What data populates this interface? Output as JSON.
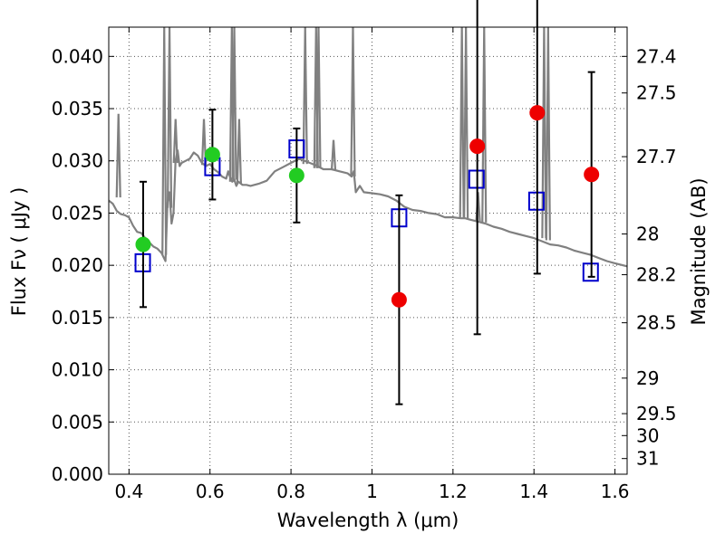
{
  "chart_data": {
    "type": "scatter",
    "title": "",
    "xlabel": "Wavelength  λ (μm)",
    "ylabel": "Flux  Fν  ( μJy )",
    "ylabel2": "Magnitude (AB)",
    "xlim": [
      0.35,
      1.63
    ],
    "ylim": [
      0.0,
      0.0428
    ],
    "grid": true,
    "grid_style": "dotted",
    "x_ticks": [
      0.4,
      0.6,
      0.8,
      1.0,
      1.2,
      1.4,
      1.6
    ],
    "x_tick_labels": [
      "0.4",
      "0.6",
      "0.8",
      "1",
      "1.2",
      "1.4",
      "1.6"
    ],
    "y_ticks": [
      0.0,
      0.005,
      0.01,
      0.015,
      0.02,
      0.025,
      0.03,
      0.035,
      0.04
    ],
    "y_tick_labels": [
      "0.000",
      "0.005",
      "0.010",
      "0.015",
      "0.020",
      "0.025",
      "0.030",
      "0.035",
      "0.040"
    ],
    "right_ticks": [
      {
        "label": "27.4",
        "flux": 0.04
      },
      {
        "label": "27.5",
        "flux": 0.0365
      },
      {
        "label": "27.7",
        "flux": 0.0304
      },
      {
        "label": "28",
        "flux": 0.023
      },
      {
        "label": "28.2",
        "flux": 0.0191
      },
      {
        "label": "28.5",
        "flux": 0.0145
      },
      {
        "label": "29",
        "flux": 0.0092
      },
      {
        "label": "29.5",
        "flux": 0.0058
      },
      {
        "label": "30",
        "flux": 0.0037
      },
      {
        "label": "31",
        "flux": 0.0015
      }
    ],
    "colors": {
      "spectrum": "#808080",
      "model": "#0000cc",
      "optical": "#22cc22",
      "nir": "#ee0000",
      "errorbar": "#000000",
      "grid": "#555555"
    },
    "series": [
      {
        "kind": "line",
        "x": [
          0.35,
          0.36,
          0.37,
          0.38,
          0.39,
          0.4,
          0.41,
          0.42,
          0.43,
          0.44,
          0.45,
          0.46,
          0.47,
          0.48,
          0.49,
          0.495,
          0.5,
          0.505,
          0.51,
          0.515,
          0.52,
          0.525,
          0.53,
          0.54,
          0.55,
          0.56,
          0.57,
          0.58,
          0.59,
          0.6,
          0.61,
          0.62,
          0.63,
          0.64,
          0.645,
          0.65,
          0.655,
          0.66,
          0.665,
          0.67,
          0.68,
          0.69,
          0.7,
          0.72,
          0.74,
          0.76,
          0.78,
          0.8,
          0.82,
          0.84,
          0.86,
          0.88,
          0.9,
          0.92,
          0.94,
          0.95,
          0.955,
          0.96,
          0.97,
          0.98,
          1.0,
          1.02,
          1.04,
          1.06,
          1.08,
          1.1,
          1.12,
          1.14,
          1.16,
          1.18,
          1.2,
          1.22,
          1.23,
          1.24,
          1.26,
          1.28,
          1.3,
          1.32,
          1.34,
          1.36,
          1.38,
          1.4,
          1.42,
          1.44,
          1.46,
          1.48,
          1.5,
          1.52,
          1.54,
          1.56,
          1.58,
          1.6,
          1.63
        ],
        "y": [
          0.0262,
          0.0259,
          0.0252,
          0.0249,
          0.0248,
          0.0246,
          0.0238,
          0.0232,
          0.0231,
          0.0226,
          0.0222,
          0.0218,
          0.0216,
          0.0212,
          0.0204,
          0.026,
          0.027,
          0.024,
          0.025,
          0.03,
          0.031,
          0.0295,
          0.0298,
          0.03,
          0.0302,
          0.0308,
          0.0305,
          0.0298,
          0.0295,
          0.0297,
          0.0292,
          0.0289,
          0.0285,
          0.0283,
          0.029,
          0.0284,
          0.028,
          0.0282,
          0.0276,
          0.028,
          0.0277,
          0.0277,
          0.0276,
          0.0278,
          0.0281,
          0.029,
          0.0294,
          0.0298,
          0.0302,
          0.0299,
          0.0296,
          0.0292,
          0.0292,
          0.029,
          0.0288,
          0.0285,
          0.029,
          0.027,
          0.0276,
          0.027,
          0.0269,
          0.0268,
          0.0266,
          0.0262,
          0.0256,
          0.0253,
          0.0252,
          0.025,
          0.0249,
          0.0246,
          0.0246,
          0.0245,
          0.0245,
          0.0244,
          0.0242,
          0.024,
          0.0237,
          0.0235,
          0.0232,
          0.023,
          0.0228,
          0.0226,
          0.0223,
          0.022,
          0.0219,
          0.0217,
          0.0214,
          0.0212,
          0.021,
          0.0207,
          0.0204,
          0.0202,
          0.0199
        ]
      },
      {
        "kind": "squares",
        "x": [
          0.434,
          0.606,
          0.814,
          1.067,
          1.258,
          1.406,
          1.54
        ],
        "y": [
          0.0202,
          0.0294,
          0.0311,
          0.0245,
          0.0282,
          0.0261,
          0.0193
        ]
      },
      {
        "kind": "points",
        "x": [
          0.435,
          0.606,
          0.814
        ],
        "y": [
          0.022,
          0.0306,
          0.0286
        ],
        "yerr": [
          0.006,
          0.0043,
          0.0045
        ],
        "color_key": "optical"
      },
      {
        "kind": "points",
        "x": [
          1.067,
          1.26,
          1.408,
          1.542
        ],
        "y": [
          0.0167,
          0.0314,
          0.0346,
          0.0287
        ],
        "yerr": [
          0.01,
          0.018,
          0.0154,
          0.0098
        ],
        "color_key": "nir"
      }
    ]
  }
}
